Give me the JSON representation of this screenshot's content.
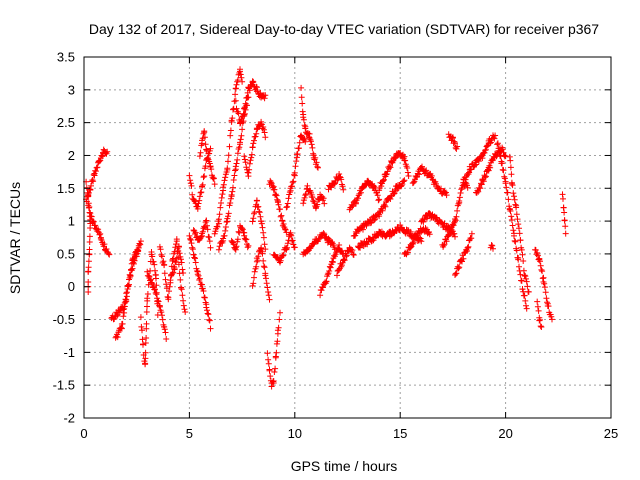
{
  "chart_data": {
    "type": "scatter",
    "title": "Day 132 of 2017, Sidereal Day-to-day VTEC variation (SDTVAR) for receiver p367",
    "xlabel": "GPS time / hours",
    "ylabel": "SDTVAR / TECUs",
    "xlim": [
      0,
      25
    ],
    "ylim": [
      -2,
      3.5
    ],
    "grid": true,
    "marker": "plus",
    "color": "#ff0000",
    "x_ticks": [
      "0",
      "5",
      "10",
      "15",
      "20",
      "25"
    ],
    "y_ticks": [
      "-2",
      "-1.5",
      "-1",
      "-0.5",
      "0",
      "0.5",
      "1",
      "1.5",
      "2",
      "2.5",
      "3",
      "3.5"
    ],
    "series": [
      {
        "name": "SDTVAR",
        "segments": [
          [
            [
              0.1,
              1.3
            ],
            [
              0.3,
              1.5
            ],
            [
              0.5,
              1.7
            ],
            [
              0.7,
              1.9
            ],
            [
              0.9,
              2.05
            ],
            [
              1.1,
              2.05
            ]
          ],
          [
            [
              0.2,
              1.2
            ],
            [
              0.4,
              1.0
            ],
            [
              0.6,
              0.9
            ],
            [
              0.8,
              0.75
            ],
            [
              1.0,
              0.6
            ],
            [
              1.2,
              0.5
            ]
          ],
          [
            [
              0.1,
              1.6
            ],
            [
              0.2,
              1.4
            ],
            [
              0.3,
              1.0
            ],
            [
              0.25,
              0.5
            ],
            [
              0.2,
              0.2
            ],
            [
              0.2,
              -0.1
            ]
          ],
          [
            [
              1.3,
              -0.5
            ],
            [
              1.6,
              -0.4
            ],
            [
              1.9,
              -0.3
            ],
            [
              2.2,
              0.2
            ],
            [
              2.5,
              0.5
            ],
            [
              2.7,
              0.7
            ]
          ],
          [
            [
              1.5,
              -0.8
            ],
            [
              1.8,
              -0.6
            ],
            [
              2.0,
              -0.2
            ],
            [
              2.3,
              0.4
            ],
            [
              2.6,
              0.6
            ]
          ],
          [
            [
              2.7,
              -0.5
            ],
            [
              2.8,
              -0.9
            ],
            [
              2.9,
              -1.2
            ],
            [
              3.0,
              -0.2
            ],
            [
              3.2,
              0.5
            ],
            [
              3.4,
              0.2
            ],
            [
              3.5,
              -0.4
            ]
          ],
          [
            [
              3.0,
              0.2
            ],
            [
              3.3,
              0.0
            ],
            [
              3.6,
              -0.3
            ],
            [
              3.8,
              -0.6
            ],
            [
              3.9,
              -0.8
            ]
          ],
          [
            [
              3.6,
              0.6
            ],
            [
              3.8,
              0.3
            ],
            [
              4.0,
              -0.2
            ],
            [
              4.2,
              0.4
            ],
            [
              4.4,
              0.7
            ],
            [
              4.6,
              0.0
            ],
            [
              4.8,
              -0.4
            ]
          ],
          [
            [
              4.1,
              0.1
            ],
            [
              4.3,
              0.3
            ],
            [
              4.5,
              0.6
            ],
            [
              4.7,
              0.2
            ]
          ],
          [
            [
              5.0,
              1.7
            ],
            [
              5.2,
              1.3
            ],
            [
              5.4,
              1.2
            ],
            [
              5.6,
              1.5
            ],
            [
              5.8,
              1.9
            ],
            [
              6.0,
              2.1
            ]
          ],
          [
            [
              5.0,
              0.8
            ],
            [
              5.2,
              0.5
            ],
            [
              5.4,
              0.2
            ],
            [
              5.6,
              0.0
            ],
            [
              5.8,
              -0.3
            ],
            [
              6.0,
              -0.6
            ]
          ],
          [
            [
              5.2,
              0.9
            ],
            [
              5.4,
              0.7
            ],
            [
              5.6,
              0.8
            ],
            [
              5.8,
              1.0
            ],
            [
              6.0,
              0.6
            ]
          ],
          [
            [
              5.5,
              2.0
            ],
            [
              5.6,
              2.2
            ],
            [
              5.7,
              2.35
            ],
            [
              5.8,
              2.1
            ],
            [
              6.0,
              1.8
            ],
            [
              6.2,
              1.6
            ]
          ],
          [
            [
              6.2,
              0.8
            ],
            [
              6.4,
              1.0
            ],
            [
              6.6,
              1.5
            ],
            [
              6.8,
              1.8
            ],
            [
              7.0,
              2.5
            ],
            [
              7.2,
              3.0
            ],
            [
              7.4,
              3.3
            ],
            [
              7.5,
              3.1
            ]
          ],
          [
            [
              6.4,
              0.6
            ],
            [
              6.6,
              0.7
            ],
            [
              6.8,
              1.0
            ],
            [
              7.0,
              1.4
            ],
            [
              7.2,
              1.8
            ],
            [
              7.4,
              2.2
            ],
            [
              7.6,
              2.6
            ],
            [
              7.8,
              2.9
            ]
          ],
          [
            [
              7.2,
              2.8
            ],
            [
              7.4,
              2.5
            ],
            [
              7.6,
              2.7
            ],
            [
              7.8,
              3.0
            ],
            [
              8.0,
              3.1
            ],
            [
              8.2,
              3.0
            ],
            [
              8.4,
              2.9
            ],
            [
              8.6,
              2.9
            ]
          ],
          [
            [
              7.6,
              2.0
            ],
            [
              7.8,
              1.7
            ],
            [
              8.0,
              2.1
            ],
            [
              8.2,
              2.4
            ],
            [
              8.4,
              2.5
            ],
            [
              8.6,
              2.3
            ]
          ],
          [
            [
              7.0,
              0.7
            ],
            [
              7.2,
              0.6
            ],
            [
              7.4,
              0.9
            ],
            [
              7.6,
              0.8
            ],
            [
              7.8,
              0.6
            ]
          ],
          [
            [
              8.0,
              1.0
            ],
            [
              8.2,
              1.3
            ],
            [
              8.4,
              1.0
            ],
            [
              8.6,
              0.6
            ]
          ],
          [
            [
              8.0,
              0.0
            ],
            [
              8.2,
              0.4
            ],
            [
              8.4,
              0.6
            ],
            [
              8.6,
              0.2
            ],
            [
              8.8,
              -0.2
            ]
          ],
          [
            [
              8.7,
              -1.0
            ],
            [
              8.8,
              -1.3
            ],
            [
              8.9,
              -1.5
            ],
            [
              9.0,
              -1.45
            ],
            [
              9.1,
              -1.1
            ],
            [
              9.2,
              -0.7
            ],
            [
              9.3,
              -0.4
            ]
          ],
          [
            [
              8.8,
              1.6
            ],
            [
              9.0,
              1.5
            ],
            [
              9.2,
              1.3
            ],
            [
              9.4,
              1.0
            ],
            [
              9.6,
              0.8
            ]
          ],
          [
            [
              9.0,
              0.5
            ],
            [
              9.3,
              0.4
            ],
            [
              9.6,
              0.6
            ],
            [
              9.8,
              0.8
            ],
            [
              10.0,
              0.6
            ]
          ],
          [
            [
              9.6,
              1.2
            ],
            [
              9.8,
              1.5
            ],
            [
              10.0,
              1.7
            ],
            [
              10.1,
              2.0
            ],
            [
              10.3,
              2.3
            ],
            [
              10.5,
              2.2
            ]
          ],
          [
            [
              10.3,
              3.0
            ],
            [
              10.4,
              2.6
            ],
            [
              10.5,
              2.4
            ],
            [
              10.7,
              2.3
            ],
            [
              10.9,
              2.0
            ],
            [
              11.1,
              1.8
            ]
          ],
          [
            [
              10.4,
              1.3
            ],
            [
              10.6,
              1.5
            ],
            [
              10.8,
              1.4
            ],
            [
              11.0,
              1.2
            ],
            [
              11.2,
              1.4
            ],
            [
              11.4,
              1.3
            ]
          ],
          [
            [
              10.4,
              0.5
            ],
            [
              10.7,
              0.6
            ],
            [
              11.0,
              0.7
            ],
            [
              11.3,
              0.8
            ],
            [
              11.6,
              0.7
            ],
            [
              11.9,
              0.6
            ]
          ],
          [
            [
              11.2,
              -0.1
            ],
            [
              11.5,
              0.1
            ],
            [
              11.8,
              0.4
            ],
            [
              12.1,
              0.6
            ],
            [
              12.3,
              0.5
            ]
          ],
          [
            [
              11.6,
              1.5
            ],
            [
              11.9,
              1.6
            ],
            [
              12.1,
              1.7
            ],
            [
              12.3,
              1.5
            ]
          ],
          [
            [
              12.0,
              0.2
            ],
            [
              12.3,
              0.4
            ],
            [
              12.6,
              0.6
            ],
            [
              12.8,
              0.5
            ]
          ],
          [
            [
              12.6,
              1.2
            ],
            [
              12.9,
              1.3
            ],
            [
              13.2,
              1.5
            ],
            [
              13.5,
              1.6
            ],
            [
              13.8,
              1.5
            ],
            [
              14.0,
              1.3
            ]
          ],
          [
            [
              12.8,
              0.8
            ],
            [
              13.2,
              0.9
            ],
            [
              13.6,
              1.0
            ],
            [
              14.0,
              1.1
            ],
            [
              14.4,
              1.3
            ],
            [
              14.8,
              1.5
            ],
            [
              15.2,
              1.6
            ]
          ],
          [
            [
              13.0,
              0.6
            ],
            [
              13.5,
              0.7
            ],
            [
              14.0,
              0.8
            ],
            [
              14.5,
              0.8
            ],
            [
              15.0,
              0.9
            ],
            [
              15.5,
              0.8
            ],
            [
              16.0,
              0.7
            ]
          ],
          [
            [
              14.0,
              1.5
            ],
            [
              14.3,
              1.7
            ],
            [
              14.6,
              1.9
            ],
            [
              14.9,
              2.05
            ],
            [
              15.2,
              1.95
            ],
            [
              15.4,
              1.7
            ]
          ],
          [
            [
              15.2,
              0.5
            ],
            [
              15.5,
              0.6
            ],
            [
              15.8,
              0.8
            ],
            [
              16.1,
              0.9
            ],
            [
              16.4,
              0.8
            ]
          ],
          [
            [
              15.6,
              1.6
            ],
            [
              16.0,
              1.8
            ],
            [
              16.4,
              1.7
            ],
            [
              16.8,
              1.5
            ],
            [
              17.2,
              1.4
            ]
          ],
          [
            [
              16.0,
              1.0
            ],
            [
              16.4,
              1.1
            ],
            [
              16.8,
              1.0
            ],
            [
              17.2,
              0.9
            ],
            [
              17.6,
              0.8
            ]
          ],
          [
            [
              17.3,
              2.3
            ],
            [
              17.5,
              2.25
            ],
            [
              17.7,
              2.1
            ]
          ],
          [
            [
              17.0,
              0.6
            ],
            [
              17.3,
              0.8
            ],
            [
              17.6,
              1.0
            ],
            [
              17.8,
              1.3
            ],
            [
              18.0,
              1.6
            ],
            [
              18.2,
              1.5
            ]
          ],
          [
            [
              17.6,
              0.2
            ],
            [
              17.9,
              0.4
            ],
            [
              18.2,
              0.6
            ],
            [
              18.4,
              0.8
            ]
          ],
          [
            [
              18.0,
              1.6
            ],
            [
              18.3,
              1.8
            ],
            [
              18.6,
              1.9
            ],
            [
              18.9,
              2.0
            ],
            [
              19.2,
              2.2
            ],
            [
              19.5,
              2.3
            ]
          ],
          [
            [
              18.6,
              1.4
            ],
            [
              18.9,
              1.6
            ],
            [
              19.2,
              1.8
            ],
            [
              19.5,
              2.0
            ],
            [
              19.8,
              2.1
            ],
            [
              20.0,
              2.0
            ]
          ],
          [
            [
              19.3,
              0.6
            ],
            [
              19.4,
              0.6
            ]
          ],
          [
            [
              19.6,
              2.2
            ],
            [
              19.8,
              1.9
            ],
            [
              20.0,
              1.6
            ],
            [
              20.2,
              1.2
            ],
            [
              20.4,
              0.8
            ],
            [
              20.6,
              0.4
            ],
            [
              20.8,
              0.0
            ],
            [
              21.0,
              -0.3
            ]
          ],
          [
            [
              20.2,
              2.0
            ],
            [
              20.3,
              1.6
            ],
            [
              20.5,
              1.2
            ],
            [
              20.7,
              0.7
            ],
            [
              20.9,
              0.2
            ],
            [
              21.1,
              -0.1
            ]
          ],
          [
            [
              21.4,
              0.6
            ],
            [
              21.6,
              0.4
            ],
            [
              21.8,
              0.1
            ],
            [
              22.0,
              -0.3
            ],
            [
              22.2,
              -0.5
            ]
          ],
          [
            [
              21.5,
              -0.2
            ],
            [
              21.6,
              -0.5
            ],
            [
              21.7,
              -0.6
            ]
          ],
          [
            [
              22.7,
              1.4
            ],
            [
              22.75,
              1.2
            ],
            [
              22.8,
              1.0
            ],
            [
              22.85,
              0.8
            ]
          ]
        ]
      }
    ]
  }
}
